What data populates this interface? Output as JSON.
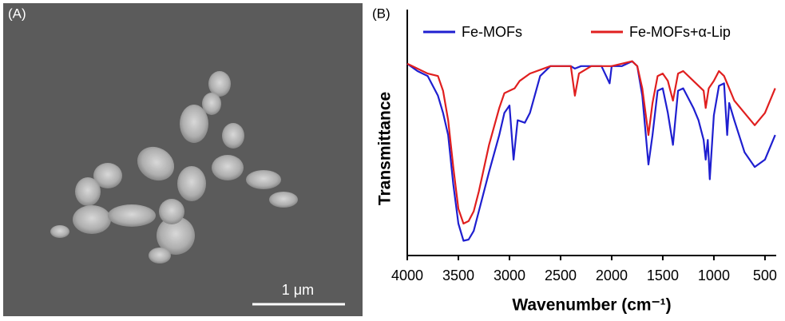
{
  "panel_a": {
    "label": "(A)",
    "scale_bar": "1 μm"
  },
  "chart_data": {
    "type": "line",
    "panel_label": "(B)",
    "x_label": "Wavenumber (cm⁻¹)",
    "y_label": "Transmittance",
    "xlim": [
      4000,
      390
    ],
    "ylim": [
      0,
      100
    ],
    "xticks": [
      4000,
      3500,
      3000,
      2500,
      2000,
      1500,
      1000,
      500
    ],
    "grid": false,
    "series": [
      {
        "name": "Fe-MOFs",
        "color": "#1f1fd0",
        "x": [
          4000,
          3900,
          3800,
          3700,
          3650,
          3600,
          3550,
          3500,
          3450,
          3400,
          3350,
          3300,
          3200,
          3100,
          3050,
          3000,
          2960,
          2920,
          2850,
          2800,
          2700,
          2600,
          2500,
          2400,
          2360,
          2300,
          2100,
          2020,
          2000,
          1900,
          1800,
          1750,
          1700,
          1640,
          1600,
          1550,
          1500,
          1450,
          1400,
          1350,
          1300,
          1200,
          1150,
          1100,
          1080,
          1060,
          1040,
          1000,
          950,
          900,
          870,
          850,
          800,
          700,
          600,
          500,
          400
        ],
        "values": [
          78,
          75,
          73,
          65,
          58,
          49,
          29,
          13,
          6,
          6.5,
          10,
          18,
          34,
          49,
          58,
          61,
          39,
          55,
          54,
          58,
          73,
          77,
          77,
          77,
          76,
          77,
          77,
          70,
          77,
          77,
          79,
          77,
          65,
          37,
          49,
          67,
          68,
          58,
          45,
          67,
          68,
          60,
          55,
          47,
          39,
          47,
          31,
          57,
          69,
          70,
          49,
          62,
          55,
          42,
          36,
          39,
          49
        ]
      },
      {
        "name": "Fe-MOFs+α-Lip",
        "color": "#e01f1f",
        "x": [
          4000,
          3800,
          3700,
          3650,
          3600,
          3550,
          3500,
          3450,
          3400,
          3350,
          3300,
          3200,
          3100,
          3050,
          3000,
          2950,
          2900,
          2800,
          2600,
          2400,
          2360,
          2320,
          2200,
          2000,
          1800,
          1750,
          1700,
          1640,
          1600,
          1550,
          1500,
          1450,
          1400,
          1350,
          1300,
          1200,
          1100,
          1080,
          1050,
          1000,
          950,
          900,
          850,
          800,
          700,
          600,
          500,
          400
        ],
        "values": [
          78,
          74,
          73,
          67,
          55,
          36,
          19,
          13,
          14,
          18,
          26,
          45,
          60,
          66,
          67,
          68,
          71,
          74,
          77,
          77,
          65,
          74,
          77,
          77,
          79,
          77,
          68,
          49,
          62,
          73,
          74,
          71,
          63,
          74,
          75,
          71,
          67,
          60,
          68,
          71,
          75,
          73,
          68,
          63,
          58,
          53,
          58,
          68
        ]
      }
    ]
  }
}
